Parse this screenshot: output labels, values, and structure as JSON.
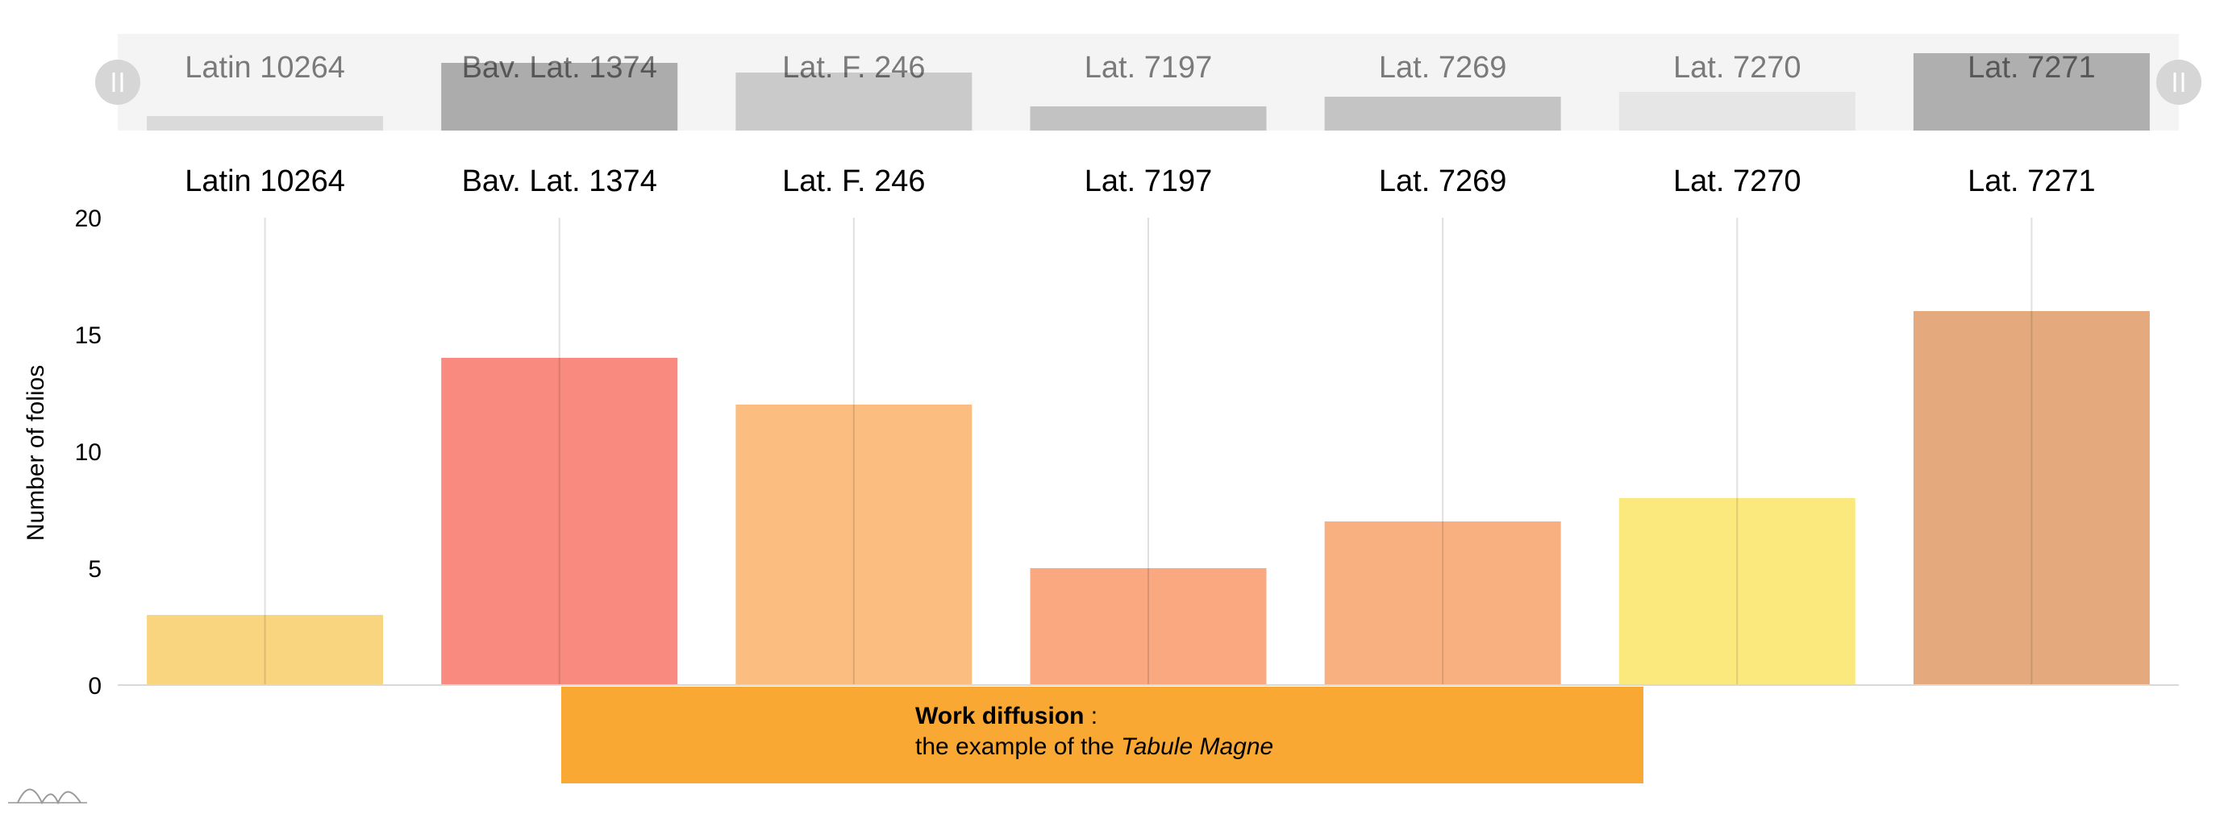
{
  "chart_data": {
    "type": "bar",
    "categories": [
      "Latin 10264",
      "Bav. Lat. 1374",
      "Lat. F. 246",
      "Lat. 7197",
      "Lat. 7269",
      "Lat. 7270",
      "Lat. 7271"
    ],
    "values": [
      3,
      14,
      12,
      5,
      7,
      8,
      16
    ],
    "colors": [
      "#fad580",
      "#f98a80",
      "#fbbe80",
      "#f9a880",
      "#f9b080",
      "#fce97e",
      "#e4aa7d"
    ],
    "scrollbar_colors": [
      "#dadada",
      "#acacac",
      "#cacaca",
      "#c2c2c2",
      "#c4c4c4",
      "#e6e6e6",
      "#afafaf"
    ],
    "ylabel": "Number of folios",
    "ylim": [
      0,
      20
    ],
    "yticks": [
      "0",
      "5",
      "10",
      "15",
      "20"
    ],
    "grid": true
  },
  "banner": {
    "title": "Work diffusion",
    "separator": " :",
    "line2_prefix": "the example of the ",
    "line2_italic": "Tabule Magne",
    "color": "#f9a834"
  },
  "scrollbar": {
    "left_grip_icon": "grip-lines-icon",
    "right_grip_icon": "grip-lines-icon"
  },
  "logo_icon": "amcharts-logo-icon"
}
